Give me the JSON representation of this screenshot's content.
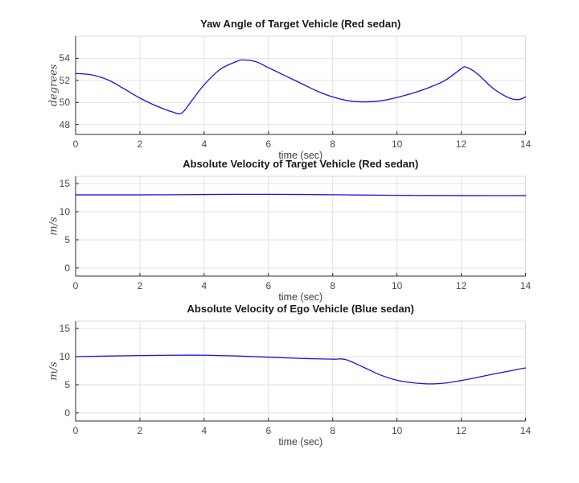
{
  "figure": {
    "background": "#ffffff",
    "line_color": "#1414e0",
    "grid_color": "#e2e2e2",
    "box_color": "#d9d9d9",
    "axis_color": "#2b2b2b",
    "tick_label_color": "#4a4a4a",
    "title_color": "#1a1a1a"
  },
  "chart_data": [
    {
      "type": "line",
      "title": "Yaw Angle of Target Vehicle (Red sedan)",
      "xlabel": "time (sec)",
      "ylabel": "degrees",
      "legend": null,
      "grid": true,
      "xlim": [
        0,
        14
      ],
      "ylim": [
        47.1,
        56.0
      ],
      "xticks": [
        0,
        2,
        4,
        6,
        8,
        10,
        12,
        14
      ],
      "yticks": [
        48,
        50,
        52,
        54
      ],
      "x": [
        0,
        0.5,
        1,
        1.5,
        2,
        2.5,
        3,
        3.3,
        3.6,
        4,
        4.5,
        5,
        5.2,
        5.6,
        6,
        6.5,
        7,
        7.5,
        8,
        8.5,
        9,
        9.5,
        10,
        10.5,
        11,
        11.5,
        12,
        12.15,
        12.5,
        13,
        13.5,
        13.8,
        14
      ],
      "y": [
        52.62,
        52.5,
        52.05,
        51.25,
        50.4,
        49.7,
        49.15,
        49.03,
        50.1,
        51.6,
        53.0,
        53.7,
        53.85,
        53.7,
        53.15,
        52.45,
        51.75,
        51.05,
        50.5,
        50.15,
        50.05,
        50.15,
        50.45,
        50.85,
        51.35,
        52.0,
        53.05,
        53.2,
        52.6,
        51.25,
        50.4,
        50.27,
        50.5
      ]
    },
    {
      "type": "line",
      "title": "Absolute Velocity of Target Vehicle (Red sedan)",
      "xlabel": "time (sec)",
      "ylabel": "m/s",
      "legend": null,
      "grid": true,
      "xlim": [
        0,
        14
      ],
      "ylim": [
        -1.45,
        16.3
      ],
      "xticks": [
        0,
        2,
        4,
        6,
        8,
        10,
        12,
        14
      ],
      "yticks": [
        0,
        5,
        10,
        15
      ],
      "x": [
        0,
        1,
        2,
        3,
        4,
        5,
        6,
        7,
        8,
        9,
        10,
        11,
        12,
        13,
        14
      ],
      "y": [
        13.0,
        13.0,
        13.0,
        13.02,
        13.07,
        13.1,
        13.1,
        13.07,
        13.02,
        12.96,
        12.92,
        12.89,
        12.87,
        12.86,
        12.87
      ]
    },
    {
      "type": "line",
      "title": "Absolute Velocity of Ego Vehicle (Blue sedan)",
      "xlabel": "time (sec)",
      "ylabel": "m/s",
      "legend": null,
      "grid": true,
      "xlim": [
        0,
        14
      ],
      "ylim": [
        -1.45,
        16.3
      ],
      "xticks": [
        0,
        2,
        4,
        6,
        8,
        10,
        12,
        14
      ],
      "yticks": [
        0,
        5,
        10,
        15
      ],
      "x": [
        0,
        1,
        2,
        3,
        4,
        5,
        6,
        7,
        8,
        8.4,
        9,
        9.5,
        10,
        10.5,
        11,
        11.5,
        12,
        12.5,
        13,
        13.5,
        14
      ],
      "y": [
        10.0,
        10.1,
        10.2,
        10.25,
        10.25,
        10.12,
        9.9,
        9.68,
        9.55,
        9.48,
        8.0,
        6.7,
        5.8,
        5.35,
        5.15,
        5.3,
        5.75,
        6.3,
        6.9,
        7.45,
        8.0
      ]
    }
  ]
}
